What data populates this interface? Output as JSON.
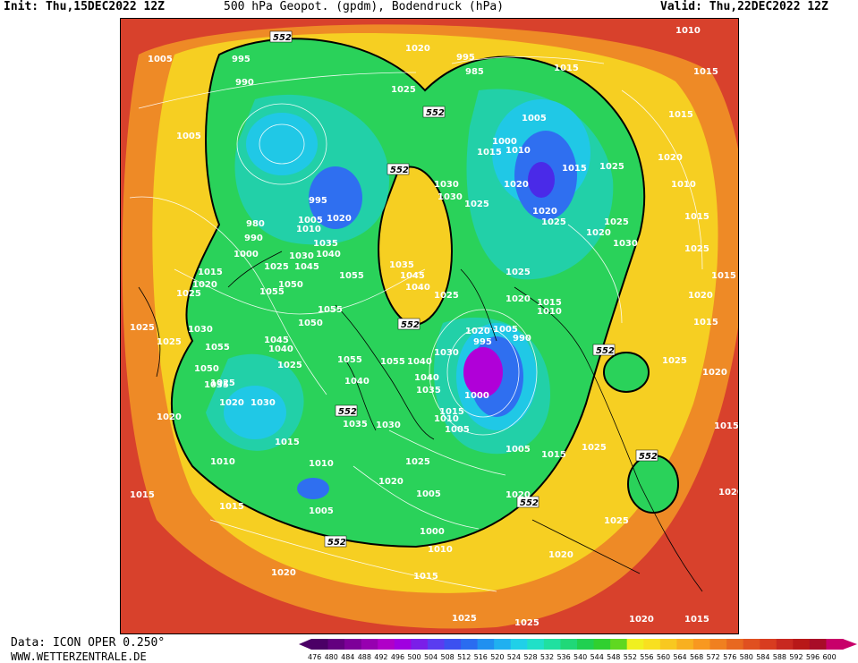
{
  "header": {
    "init": "Init: Thu,15DEC2022 12Z",
    "title": "500 hPa Geopot. (gpdm), Bodendruck (hPa)",
    "valid": "Valid: Thu,22DEC2022 12Z"
  },
  "footer": {
    "data_source": "Data: ICON OPER 0.250°",
    "website": "WWW.WETTERZENTRALE.DE"
  },
  "legend": {
    "values": [
      "476",
      "480",
      "484",
      "488",
      "492",
      "496",
      "500",
      "504",
      "508",
      "512",
      "516",
      "520",
      "524",
      "528",
      "532",
      "536",
      "540",
      "544",
      "548",
      "552",
      "556",
      "560",
      "564",
      "568",
      "572",
      "576",
      "580",
      "584",
      "588",
      "592",
      "596",
      "600"
    ],
    "colors": [
      "#4b0066",
      "#63007f",
      "#7d0099",
      "#9700b0",
      "#b000c8",
      "#a000e0",
      "#7a1ee8",
      "#5a3cf0",
      "#3c50f0",
      "#2a6cf0",
      "#2090f0",
      "#20b0f0",
      "#20d0e8",
      "#20e0c8",
      "#20e0a0",
      "#20d878",
      "#20d050",
      "#30d030",
      "#60d820",
      "#f0f020",
      "#f8e020",
      "#f8c820",
      "#f8b020",
      "#f89820",
      "#f08020",
      "#e86820",
      "#e05020",
      "#d83c20",
      "#c82820",
      "#b81818",
      "#a80c28",
      "#c8006a"
    ]
  },
  "map": {
    "contour_552_label": "552",
    "pressure_labels": [
      "1010",
      "1015",
      "1005",
      "1020",
      "995",
      "985",
      "990",
      "1025",
      "1030",
      "1035",
      "1040",
      "1045",
      "1050",
      "1055",
      "1000",
      "980"
    ],
    "region_colors": {
      "outer": "#d8412c",
      "orange": "#ee8a26",
      "yellow": "#f6cf22",
      "green": "#2ad25a",
      "teal": "#22d0a8",
      "cyan": "#20c8e6",
      "blue": "#2f6ff0",
      "deep_blue": "#4a2ae8",
      "purple": "#b000d8"
    }
  }
}
